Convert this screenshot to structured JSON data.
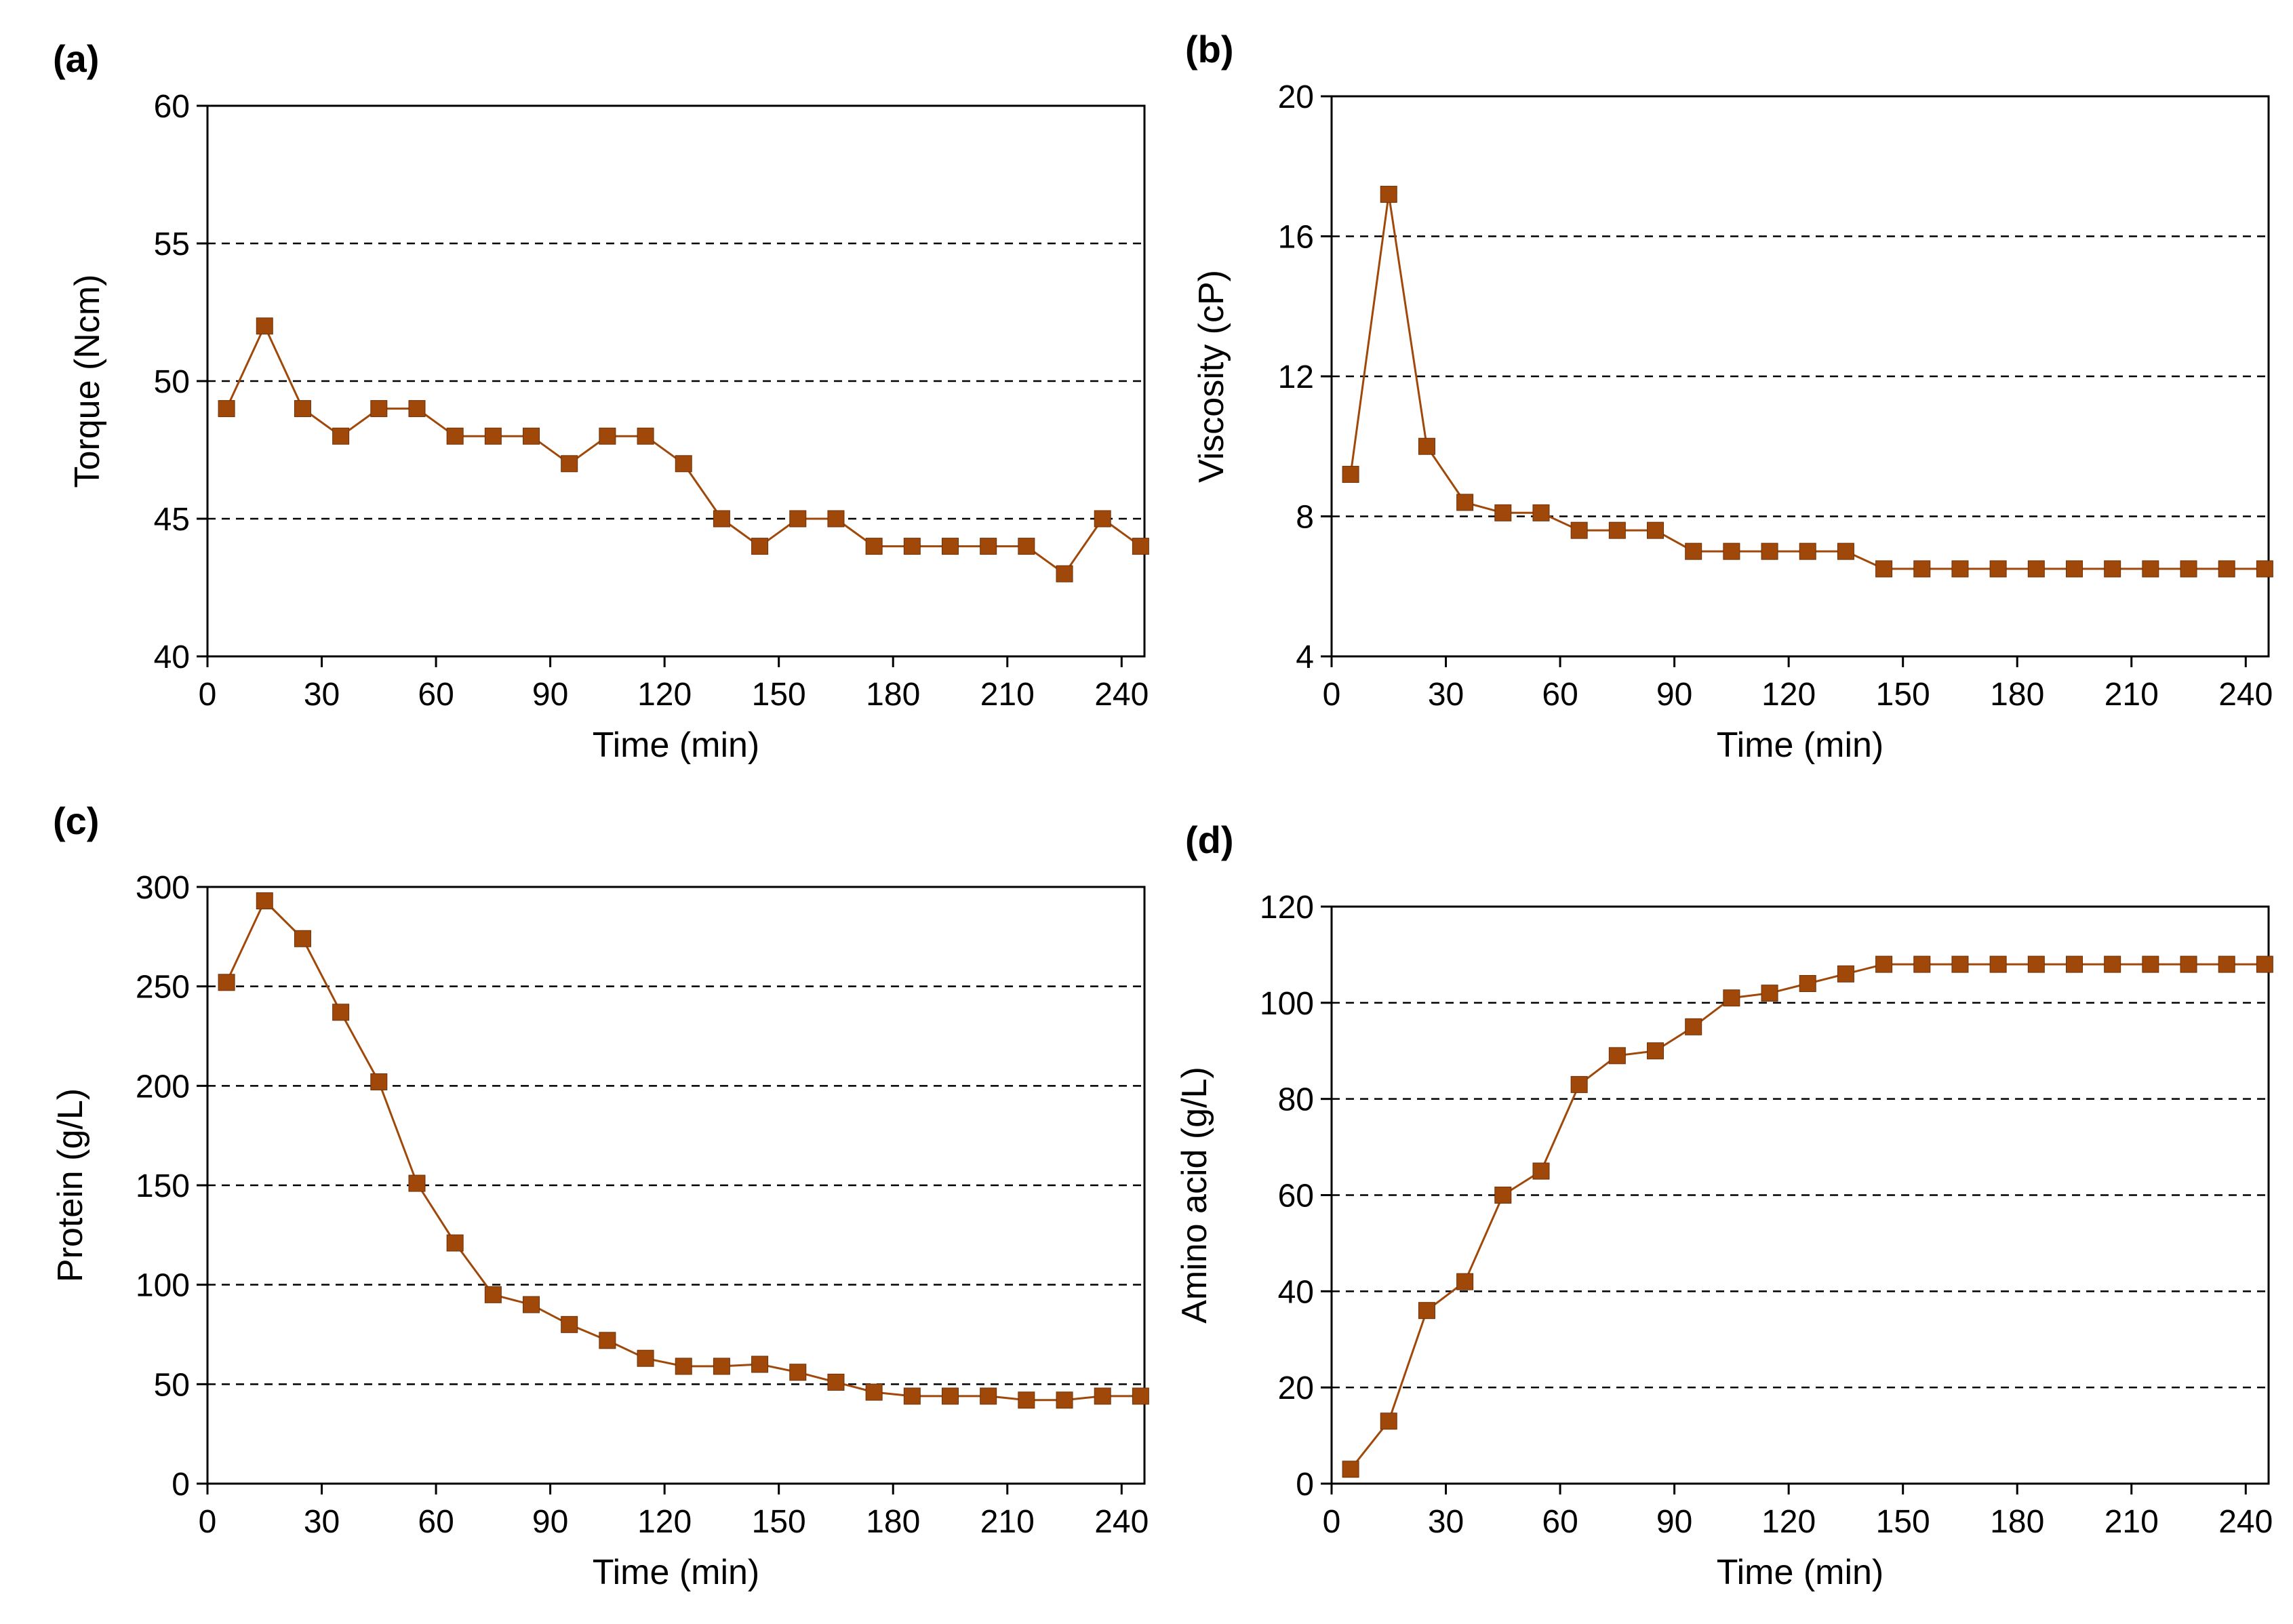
{
  "colors": {
    "series": "#A0480A",
    "axis": "#000000"
  },
  "chart_data": [
    {
      "type": "line",
      "panel": "(a)",
      "xlabel": "Time (min)",
      "ylabel": "Torque (Ncm)",
      "xlim": [
        0,
        246
      ],
      "ylim": [
        40,
        60
      ],
      "xticks": [
        0,
        30,
        60,
        90,
        120,
        150,
        180,
        210,
        240
      ],
      "yticks": [
        40,
        45,
        50,
        55,
        60
      ],
      "grid_y": [
        45,
        50,
        55
      ],
      "marker": "square",
      "x": [
        5,
        15,
        25,
        35,
        45,
        55,
        65,
        75,
        85,
        95,
        105,
        115,
        125,
        135,
        145,
        155,
        165,
        175,
        185,
        195,
        205,
        215,
        225,
        235,
        245
      ],
      "values": [
        49,
        52,
        49,
        48,
        49,
        49,
        48,
        48,
        48,
        47,
        48,
        48,
        47,
        45,
        44,
        45,
        45,
        44,
        44,
        44,
        44,
        44,
        43,
        45,
        44
      ]
    },
    {
      "type": "line",
      "panel": "(b)",
      "xlabel": "Time (min)",
      "ylabel": "Viscosity (cP)",
      "xlim": [
        0,
        246
      ],
      "ylim": [
        4,
        20
      ],
      "xticks": [
        0,
        30,
        60,
        90,
        120,
        150,
        180,
        210,
        240
      ],
      "yticks": [
        4,
        8,
        12,
        16,
        20
      ],
      "grid_y": [
        8,
        12,
        16
      ],
      "marker": "square",
      "x": [
        5,
        15,
        25,
        35,
        45,
        55,
        65,
        75,
        85,
        95,
        105,
        115,
        125,
        135,
        145,
        155,
        165,
        175,
        185,
        195,
        205,
        215,
        225,
        235,
        245
      ],
      "values": [
        9.2,
        17.2,
        10.0,
        8.4,
        8.1,
        8.1,
        7.6,
        7.6,
        7.6,
        7.0,
        7.0,
        7.0,
        7.0,
        7.0,
        6.5,
        6.5,
        6.5,
        6.5,
        6.5,
        6.5,
        6.5,
        6.5,
        6.5,
        6.5,
        6.5
      ]
    },
    {
      "type": "line",
      "panel": "(c)",
      "xlabel": "Time (min)",
      "ylabel": "Protein (g/L)",
      "xlim": [
        0,
        246
      ],
      "ylim": [
        0,
        300
      ],
      "xticks": [
        0,
        30,
        60,
        90,
        120,
        150,
        180,
        210,
        240
      ],
      "yticks": [
        0,
        50,
        100,
        150,
        200,
        250,
        300
      ],
      "grid_y": [
        50,
        100,
        150,
        200,
        250
      ],
      "marker": "square",
      "x": [
        5,
        15,
        25,
        35,
        45,
        55,
        65,
        75,
        85,
        95,
        105,
        115,
        125,
        135,
        145,
        155,
        165,
        175,
        185,
        195,
        205,
        215,
        225,
        235,
        245
      ],
      "values": [
        252,
        293,
        274,
        237,
        202,
        151,
        121,
        95,
        90,
        80,
        72,
        63,
        59,
        59,
        60,
        56,
        51,
        46,
        44,
        44,
        44,
        42,
        42,
        44,
        44
      ]
    },
    {
      "type": "line",
      "panel": "(d)",
      "xlabel": "Time (min)",
      "ylabel": "Amino acid (g/L)",
      "xlim": [
        0,
        246
      ],
      "ylim": [
        0,
        120
      ],
      "xticks": [
        0,
        30,
        60,
        90,
        120,
        150,
        180,
        210,
        240
      ],
      "yticks": [
        0,
        20,
        40,
        60,
        80,
        100,
        120
      ],
      "grid_y": [
        20,
        40,
        60,
        80,
        100
      ],
      "marker": "square",
      "x": [
        5,
        15,
        25,
        35,
        45,
        55,
        65,
        75,
        85,
        95,
        105,
        115,
        125,
        135,
        145,
        155,
        165,
        175,
        185,
        195,
        205,
        215,
        225,
        235,
        245
      ],
      "values": [
        3,
        13,
        36,
        42,
        60,
        65,
        83,
        89,
        90,
        95,
        101,
        102,
        104,
        106,
        108,
        108,
        108,
        108,
        108,
        108,
        108,
        108,
        108,
        108,
        108
      ]
    }
  ]
}
